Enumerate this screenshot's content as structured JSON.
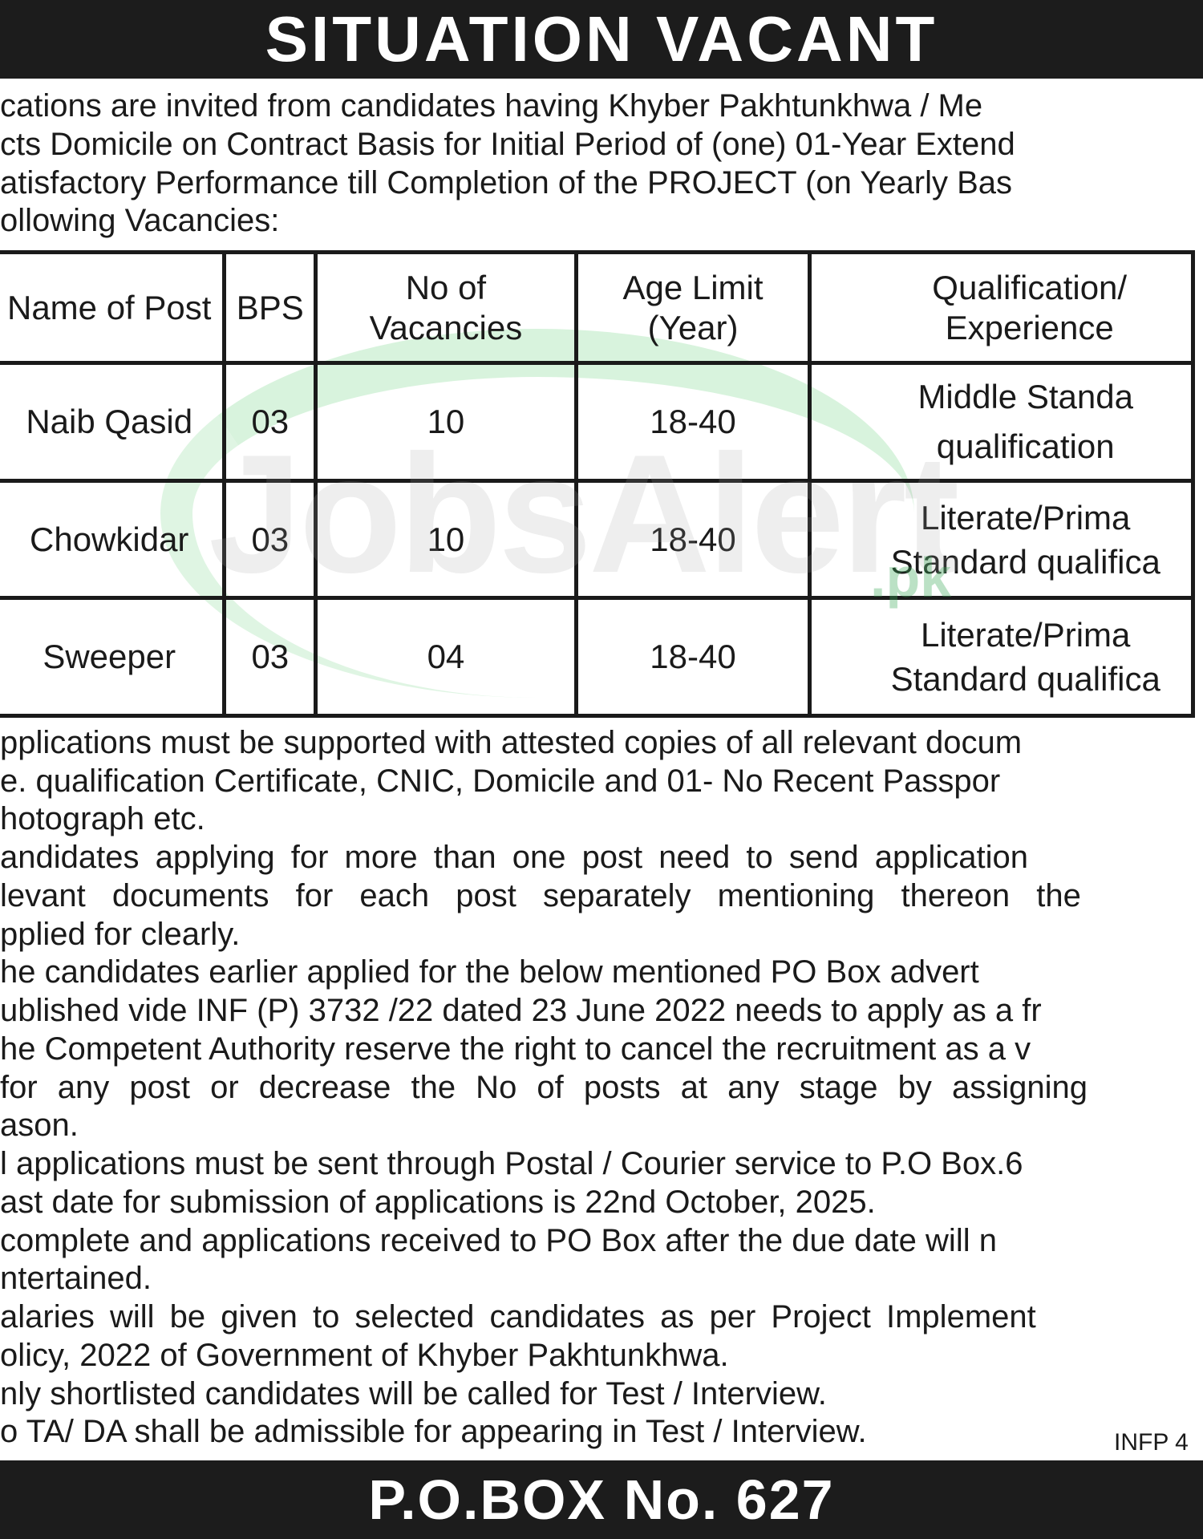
{
  "header": {
    "title": "SITUATION VACANT"
  },
  "intro": [
    "cations are invited from candidates having Khyber Pakhtunkhwa / Me",
    "cts Domicile on Contract Basis for Initial Period of (one) 01-Year Extend",
    "atisfactory Performance till Completion of the PROJECT (on Yearly Bas",
    "ollowing Vacancies:"
  ],
  "table": {
    "headers": [
      "Name of Post",
      "BPS",
      "No of Vacancies",
      "Age Limit (Year)",
      "Qualification/ Experience"
    ],
    "rows": [
      {
        "post": "Naib Qasid",
        "bps": "03",
        "vacancies": "10",
        "age": "18-40",
        "qualification": "Middle Standa qualification"
      },
      {
        "post": "Chowkidar",
        "bps": "03",
        "vacancies": "10",
        "age": "18-40",
        "qualification": "Literate/Prima Standard qualifica"
      },
      {
        "post": "Sweeper",
        "bps": "03",
        "vacancies": "04",
        "age": "18-40",
        "qualification": "Literate/Prima Standard qualifica"
      }
    ]
  },
  "terms": [
    "pplications must be supported with attested copies of all relevant docum",
    "e. qualification Certificate, CNIC, Domicile and 01- No Recent Passpor",
    "hotograph etc.",
    "andidates applying for more than one post need to send application",
    "levant documents for each post separately mentioning thereon the",
    "pplied for clearly.",
    "he candidates earlier applied for the below mentioned PO Box advert",
    "ublished vide INF (P) 3732 /22 dated 23 June 2022 needs to apply as a fr",
    "he Competent Authority reserve the right to cancel the recruitment as a v",
    " for any post or decrease the No of posts at any stage by assigning",
    "ason.",
    "l applications must be sent through Postal / Courier service to P.O Box.6",
    "ast date for submission of applications is 22nd October, 2025.",
    "complete and applications received to PO Box after the due date will n",
    "ntertained.",
    "alaries will be given to selected candidates as per Project Implement",
    "olicy, 2022 of Government of Khyber Pakhtunkhwa.",
    "nly shortlisted candidates will be called for Test / Interview.",
    "o TA/ DA shall be admissible for appearing in Test / Interview."
  ],
  "infp": "INFP 4",
  "footer": {
    "po_box": "P.O.BOX No. 627"
  },
  "watermark": {
    "text": "JobsAlert",
    "suffix": ".pk"
  }
}
